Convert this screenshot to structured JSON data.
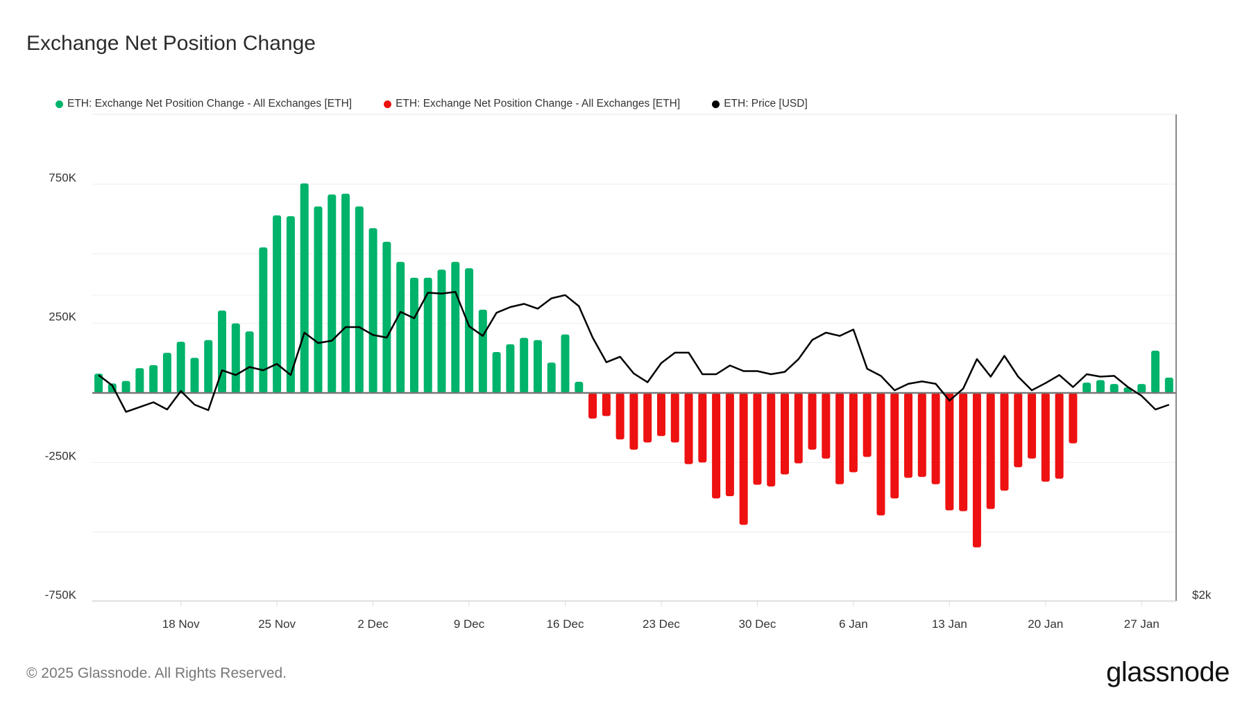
{
  "chart_data": {
    "type": "bar",
    "title": "Exchange Net Position Change",
    "legend": [
      {
        "label": "ETH: Exchange Net Position Change - All Exchanges [ETH]",
        "color": "#00b36b"
      },
      {
        "label": "ETH: Exchange Net Position Change - All Exchanges [ETH]",
        "color": "#ee1111"
      },
      {
        "label": "ETH: Price [USD]",
        "color": "#000000"
      }
    ],
    "legend_position": "top-left",
    "x_start": "2024-11-12",
    "x_ticks": [
      "18 Nov",
      "25 Nov",
      "2 Dec",
      "9 Dec",
      "16 Dec",
      "23 Dec",
      "30 Dec",
      "6 Jan",
      "13 Jan",
      "20 Jan",
      "27 Jan"
    ],
    "y_ticks": [
      {
        "value": 750000,
        "label": "750K"
      },
      {
        "value": 250000,
        "label": "250K"
      },
      {
        "value": -250000,
        "label": "-250K"
      },
      {
        "value": -750000,
        "label": "-750K"
      }
    ],
    "ylim": [
      -750000,
      1000000
    ],
    "y2_label": "$2k",
    "grid": true,
    "net_position_change_k": [
      69,
      34,
      43,
      89,
      100,
      144,
      184,
      126,
      190,
      296,
      250,
      221,
      523,
      638,
      635,
      753,
      670,
      713,
      716,
      670,
      592,
      543,
      471,
      414,
      414,
      443,
      471,
      448,
      299,
      147,
      175,
      198,
      190,
      109,
      210,
      40,
      -92,
      -83,
      -167,
      -204,
      -178,
      -155,
      -178,
      -256,
      -250,
      -379,
      -371,
      -474,
      -330,
      -336,
      -293,
      -253,
      -204,
      -236,
      -328,
      -285,
      -230,
      -440,
      -379,
      -305,
      -302,
      -328,
      -422,
      -425,
      -555,
      -417,
      -351,
      -267,
      -236,
      -319,
      -308,
      -181,
      37,
      46,
      32,
      20,
      32,
      152,
      55
    ],
    "price_usd": [
      3433,
      3346,
      3126,
      3166,
      3206,
      3146,
      3300,
      3186,
      3140,
      3473,
      3433,
      3500,
      3473,
      3526,
      3433,
      3787,
      3700,
      3720,
      3833,
      3833,
      3767,
      3746,
      3960,
      3907,
      4120,
      4113,
      4127,
      3840,
      3760,
      3953,
      4000,
      4027,
      3987,
      4073,
      4100,
      4007,
      3746,
      3540,
      3586,
      3446,
      3373,
      3533,
      3620,
      3620,
      3440,
      3440,
      3513,
      3466,
      3466,
      3440,
      3460,
      3566,
      3726,
      3787,
      3760,
      3813,
      3486,
      3426,
      3306,
      3360,
      3380,
      3360,
      3220,
      3320,
      3566,
      3420,
      3593,
      3420,
      3306,
      3366,
      3433,
      3333,
      3440,
      3420,
      3426,
      3333,
      3260,
      3146,
      3186
    ],
    "colors": {
      "positive": "#00b36b",
      "negative": "#ee1111",
      "price": "#000000"
    }
  },
  "footer": "© 2025 Glassnode. All Rights Reserved.",
  "logo": "glassnode"
}
